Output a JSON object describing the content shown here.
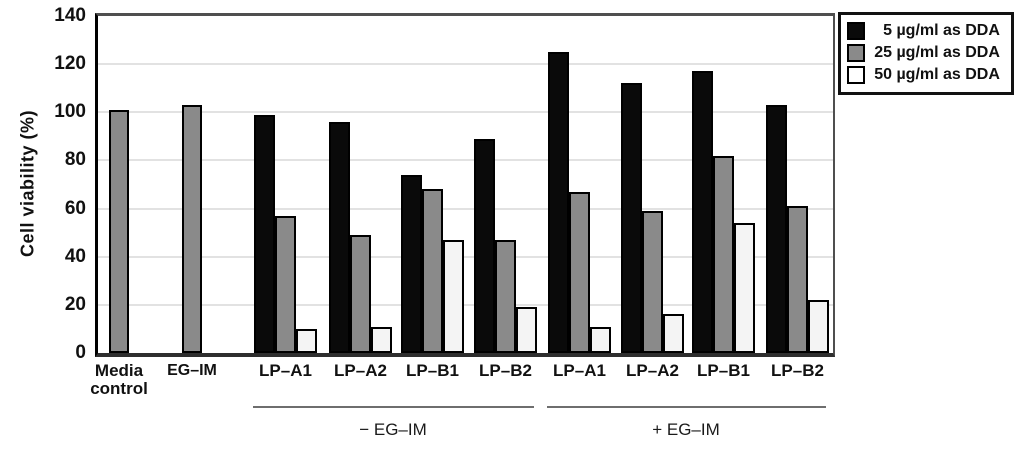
{
  "chart_data": {
    "type": "bar",
    "title": "",
    "xlabel": "",
    "ylabel": "Cell viability (%)",
    "ylim": [
      0,
      140
    ],
    "yticks": [
      0,
      20,
      40,
      60,
      80,
      100,
      120,
      140
    ],
    "grid": true,
    "legend_position": "outside-top-right",
    "categories": [
      "Media control",
      "EG–IM",
      "LP–A1",
      "LP–A2",
      "LP–B1",
      "LP–B2",
      "LP–A1",
      "LP–A2",
      "LP–B1",
      "LP–B2"
    ],
    "series": [
      {
        "name": "5 µg/ml as DDA",
        "color": "#0a0a0a",
        "values": [
          null,
          null,
          99,
          96,
          74,
          89,
          125,
          112,
          117,
          103
        ]
      },
      {
        "name": "25 µg/ml as DDA",
        "color": "#8a8a8a",
        "values": [
          101,
          103,
          57,
          49,
          68,
          47,
          67,
          59,
          82,
          61
        ]
      },
      {
        "name": "50 µg/ml as DDA",
        "color": "#f4f4f4",
        "values": [
          null,
          null,
          10,
          11,
          47,
          19,
          11,
          16,
          54,
          22
        ]
      }
    ],
    "section_labels": [
      {
        "label": "− EG–IM",
        "category_span": [
          2,
          5
        ]
      },
      {
        "label": "+ EG–IM",
        "category_span": [
          6,
          9
        ]
      }
    ]
  }
}
